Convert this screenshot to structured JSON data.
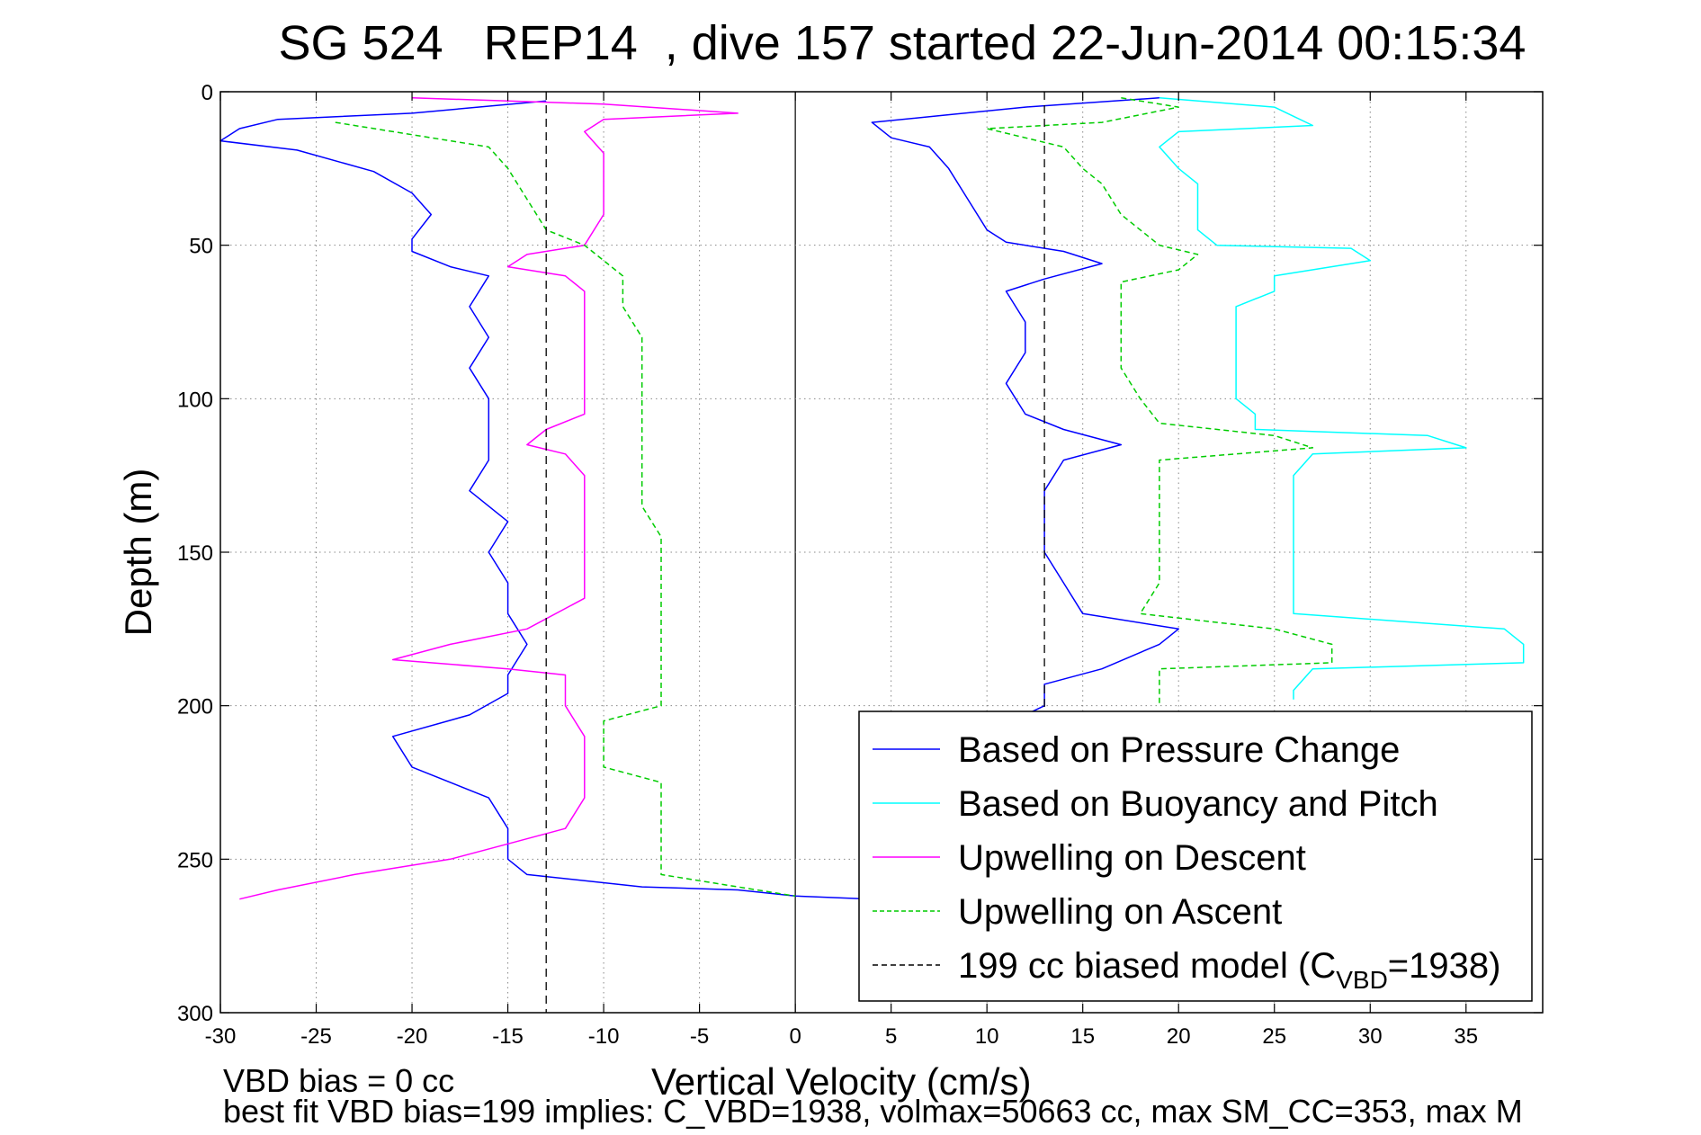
{
  "chart_data": {
    "type": "line",
    "title": "SG 524   REP14  , dive 157 started 22-Jun-2014 00:15:34",
    "xlabel": "Vertical Velocity (cm/s)",
    "ylabel": "Depth (m)",
    "xlim": [
      -30,
      39
    ],
    "ylim": [
      0,
      300
    ],
    "y_reversed": true,
    "grid": true,
    "legend_position": "lower-right",
    "xticks": [
      "-30",
      "-25",
      "-20",
      "-15",
      "-10",
      "-5",
      "0",
      "5",
      "10",
      "15",
      "20",
      "25",
      "30",
      "35"
    ],
    "yticks": [
      "0",
      "50",
      "100",
      "150",
      "200",
      "250",
      "300"
    ],
    "series": [
      {
        "name": "Based on Pressure Change",
        "color": "#0000ff",
        "style": "solid",
        "points": [
          [
            -13,
            3
          ],
          [
            -20,
            7
          ],
          [
            -27,
            9
          ],
          [
            -29,
            12
          ],
          [
            -30,
            16
          ],
          [
            -26,
            19
          ],
          [
            -22,
            26
          ],
          [
            -20,
            33
          ],
          [
            -19,
            40
          ],
          [
            -20,
            48
          ],
          [
            -20,
            52
          ],
          [
            -18,
            57
          ],
          [
            -16,
            60
          ],
          [
            -17,
            70
          ],
          [
            -16,
            80
          ],
          [
            -17,
            90
          ],
          [
            -16,
            100
          ],
          [
            -16,
            110
          ],
          [
            -16,
            120
          ],
          [
            -17,
            130
          ],
          [
            -15,
            140
          ],
          [
            -16,
            150
          ],
          [
            -15,
            160
          ],
          [
            -15,
            170
          ],
          [
            -14,
            180
          ],
          [
            -15,
            190
          ],
          [
            -15,
            196
          ],
          [
            -17,
            203
          ],
          [
            -21,
            210
          ],
          [
            -20,
            220
          ],
          [
            -16,
            230
          ],
          [
            -15,
            240
          ],
          [
            -15,
            250
          ],
          [
            -14,
            255
          ],
          [
            -8,
            259
          ],
          [
            -3,
            260
          ],
          [
            0,
            262
          ],
          [
            4,
            263
          ],
          [
            8,
            262
          ]
        ],
        "points_ascent": [
          [
            19,
            2
          ],
          [
            12,
            5
          ],
          [
            4,
            10
          ],
          [
            5,
            15
          ],
          [
            7,
            18
          ],
          [
            8,
            25
          ],
          [
            9,
            35
          ],
          [
            10,
            45
          ],
          [
            11,
            49
          ],
          [
            14,
            52
          ],
          [
            16,
            56
          ],
          [
            13,
            61
          ],
          [
            11,
            65
          ],
          [
            12,
            75
          ],
          [
            12,
            85
          ],
          [
            11,
            95
          ],
          [
            12,
            105
          ],
          [
            14,
            110
          ],
          [
            17,
            115
          ],
          [
            14,
            120
          ],
          [
            13,
            130
          ],
          [
            13,
            140
          ],
          [
            13,
            150
          ],
          [
            14,
            160
          ],
          [
            15,
            170
          ],
          [
            20,
            175
          ],
          [
            19,
            180
          ],
          [
            16,
            188
          ],
          [
            13,
            193
          ],
          [
            13,
            200
          ],
          [
            12,
            203
          ]
        ]
      },
      {
        "name": "Based on Buoyancy and Pitch",
        "color": "#00ffff",
        "style": "solid",
        "points": [
          [
            19,
            2
          ],
          [
            25,
            5
          ],
          [
            26,
            8
          ],
          [
            27,
            11
          ],
          [
            20,
            13
          ],
          [
            19,
            18
          ],
          [
            20,
            25
          ],
          [
            21,
            30
          ],
          [
            21,
            40
          ],
          [
            21,
            45
          ],
          [
            22,
            50
          ],
          [
            29,
            51
          ],
          [
            30,
            55
          ],
          [
            25,
            60
          ],
          [
            25,
            65
          ],
          [
            23,
            70
          ],
          [
            23,
            80
          ],
          [
            23,
            90
          ],
          [
            23,
            100
          ],
          [
            24,
            105
          ],
          [
            24,
            110
          ],
          [
            33,
            112
          ],
          [
            35,
            116
          ],
          [
            27,
            118
          ],
          [
            26,
            125
          ],
          [
            26,
            140
          ],
          [
            26,
            150
          ],
          [
            26,
            160
          ],
          [
            26,
            170
          ],
          [
            37,
            175
          ],
          [
            38,
            180
          ],
          [
            38,
            186
          ],
          [
            27,
            188
          ],
          [
            26,
            195
          ],
          [
            26,
            198
          ]
        ]
      },
      {
        "name": "Upwelling on Descent",
        "color": "#ff00ff",
        "style": "solid",
        "points": [
          [
            -20,
            2
          ],
          [
            -10,
            4
          ],
          [
            -3,
            7
          ],
          [
            -10,
            9
          ],
          [
            -11,
            13
          ],
          [
            -10,
            20
          ],
          [
            -10,
            30
          ],
          [
            -10,
            40
          ],
          [
            -11,
            50
          ],
          [
            -14,
            53
          ],
          [
            -15,
            57
          ],
          [
            -12,
            60
          ],
          [
            -11,
            65
          ],
          [
            -11,
            75
          ],
          [
            -11,
            85
          ],
          [
            -11,
            95
          ],
          [
            -11,
            105
          ],
          [
            -13,
            110
          ],
          [
            -14,
            115
          ],
          [
            -12,
            118
          ],
          [
            -11,
            125
          ],
          [
            -11,
            135
          ],
          [
            -11,
            145
          ],
          [
            -11,
            155
          ],
          [
            -11,
            165
          ],
          [
            -14,
            175
          ],
          [
            -18,
            180
          ],
          [
            -21,
            185
          ],
          [
            -15,
            188
          ],
          [
            -12,
            190
          ],
          [
            -12,
            200
          ],
          [
            -11,
            210
          ],
          [
            -11,
            220
          ],
          [
            -11,
            230
          ],
          [
            -12,
            240
          ],
          [
            -15,
            245
          ],
          [
            -18,
            250
          ],
          [
            -23,
            255
          ],
          [
            -27,
            260
          ],
          [
            -29,
            263
          ]
        ]
      },
      {
        "name": "Upwelling on Ascent",
        "color": "#00cc00",
        "style": "dashed",
        "points": [
          [
            -24,
            10
          ],
          [
            -16,
            18
          ],
          [
            -15,
            25
          ],
          [
            -14,
            35
          ],
          [
            -13,
            45
          ],
          [
            -11,
            50
          ],
          [
            -10,
            55
          ],
          [
            -9,
            60
          ],
          [
            -9,
            70
          ],
          [
            -8,
            80
          ],
          [
            -8,
            100
          ],
          [
            -8,
            120
          ],
          [
            -8,
            135
          ],
          [
            -7,
            145
          ],
          [
            -7,
            160
          ],
          [
            -7,
            180
          ],
          [
            -7,
            200
          ],
          [
            -10,
            205
          ],
          [
            -10,
            220
          ],
          [
            -7,
            225
          ],
          [
            -7,
            240
          ],
          [
            -7,
            255
          ],
          [
            -3,
            259
          ],
          [
            0,
            262
          ]
        ],
        "points_ascent": [
          [
            17,
            2
          ],
          [
            20,
            5
          ],
          [
            16,
            10
          ],
          [
            10,
            12
          ],
          [
            14,
            18
          ],
          [
            15,
            25
          ],
          [
            16,
            30
          ],
          [
            17,
            40
          ],
          [
            18,
            45
          ],
          [
            19,
            50
          ],
          [
            21,
            53
          ],
          [
            20,
            58
          ],
          [
            17,
            62
          ],
          [
            17,
            70
          ],
          [
            17,
            80
          ],
          [
            17,
            90
          ],
          [
            18,
            100
          ],
          [
            19,
            108
          ],
          [
            25,
            112
          ],
          [
            27,
            116
          ],
          [
            19,
            120
          ],
          [
            19,
            130
          ],
          [
            19,
            140
          ],
          [
            19,
            150
          ],
          [
            19,
            160
          ],
          [
            18,
            170
          ],
          [
            25,
            175
          ],
          [
            28,
            180
          ],
          [
            28,
            186
          ],
          [
            19,
            188
          ],
          [
            19,
            195
          ],
          [
            19,
            200
          ]
        ]
      },
      {
        "name": "199 cc biased model (C_VBD=1938)",
        "color": "#000000",
        "style": "dashed",
        "points": [
          [
            -13,
            0
          ],
          [
            -13,
            300
          ]
        ],
        "points_ascent": [
          [
            13,
            0
          ],
          [
            13,
            203
          ]
        ]
      }
    ],
    "legend_label_last_prefix": "199 cc biased model (C",
    "legend_label_last_sub": "VBD",
    "legend_label_last_suffix": "=1938)"
  },
  "footer": {
    "line1": "VBD bias = 0 cc",
    "line2": "best fit VBD bias=199 implies: C_VBD=1938, volmax=50663 cc, max SM_CC=353, max M"
  }
}
